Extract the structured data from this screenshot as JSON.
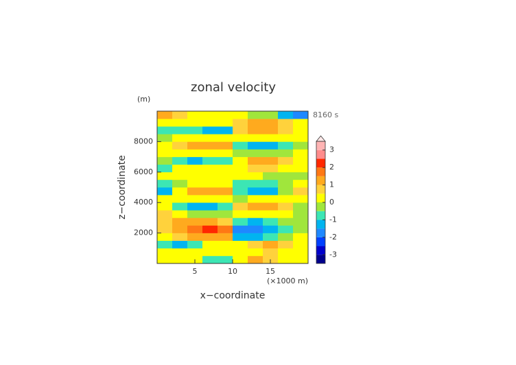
{
  "chart_data": {
    "type": "contourf",
    "title": "zonal velocity",
    "y_unit_label": "(m)",
    "time_label": "8160 s",
    "xlabel": "x−coordinate",
    "ylabel": "z−coordinate",
    "x_unit_label": "(×1000 m)",
    "xlim": [
      0,
      20
    ],
    "ylim": [
      0,
      10000
    ],
    "xticks": [
      5,
      10,
      15
    ],
    "yticks": [
      2000,
      4000,
      6000,
      8000
    ],
    "x": [
      1,
      3,
      5,
      7,
      9,
      11,
      13,
      15,
      17,
      19
    ],
    "y": [
      250,
      750,
      1250,
      1750,
      2250,
      2750,
      3250,
      3750,
      4250,
      4750,
      5250,
      5750,
      6250,
      6750,
      7250,
      7750,
      8250,
      8750,
      9250,
      9750
    ],
    "z": [
      [
        0.2,
        0.3,
        0.4,
        -0.6,
        -0.7,
        0.3,
        1.0,
        0.6,
        0.3,
        0.2
      ],
      [
        0.2,
        0.1,
        0.3,
        0.4,
        0.3,
        0.2,
        0.4,
        0.5,
        0.3,
        0.2
      ],
      [
        -0.8,
        -1.1,
        -0.6,
        0.2,
        0.3,
        0.4,
        0.9,
        1.1,
        0.8,
        0.3
      ],
      [
        0.4,
        0.9,
        1.1,
        1.2,
        1.0,
        -1.1,
        -1.2,
        -0.8,
        -0.3,
        0.1
      ],
      [
        0.8,
        1.3,
        1.6,
        2.1,
        1.6,
        -1.6,
        -1.9,
        -1.2,
        -0.6,
        -0.2
      ],
      [
        0.7,
        1.0,
        1.1,
        1.1,
        0.9,
        -0.9,
        -1.2,
        -0.6,
        -0.2,
        -0.5
      ],
      [
        0.5,
        0.2,
        -0.3,
        -0.4,
        -0.2,
        0.3,
        0.4,
        0.4,
        0.2,
        -0.4
      ],
      [
        0.3,
        -0.6,
        -1.2,
        -1.4,
        -1.0,
        0.9,
        1.2,
        1.1,
        0.5,
        -0.2
      ],
      [
        0.1,
        0.2,
        0.3,
        0.3,
        0.2,
        -0.1,
        0.1,
        0.2,
        0.3,
        0.2
      ],
      [
        -1.2,
        0.3,
        1.0,
        1.3,
        1.0,
        -1.0,
        -1.3,
        -1.2,
        -0.4,
        0.9
      ],
      [
        -1.0,
        -0.3,
        0.2,
        0.3,
        0.3,
        -0.6,
        -0.8,
        -0.8,
        -0.5,
        0.3
      ],
      [
        0.2,
        0.3,
        0.3,
        0.3,
        0.2,
        0.1,
        0.2,
        -0.2,
        -0.4,
        -0.1
      ],
      [
        -0.6,
        0.1,
        0.3,
        0.2,
        0.1,
        0.3,
        0.6,
        0.7,
        0.4,
        0.2
      ],
      [
        -0.4,
        -0.8,
        -1.3,
        -0.8,
        -0.6,
        0.3,
        1.0,
        1.1,
        0.8,
        0.3
      ],
      [
        0.2,
        0.4,
        0.4,
        0.3,
        0.1,
        -0.2,
        -0.4,
        -0.5,
        -0.3,
        0.0
      ],
      [
        0.3,
        0.8,
        1.2,
        1.3,
        1.0,
        -1.0,
        -1.4,
        -1.3,
        -0.8,
        -0.2
      ],
      [
        -0.2,
        0.1,
        0.3,
        0.2,
        0,
        0.2,
        0.3,
        0.2,
        0.1,
        0.2
      ],
      [
        -0.6,
        -0.8,
        -0.9,
        -1.2,
        -1.5,
        0.8,
        1.2,
        1.1,
        0.8,
        0.3
      ],
      [
        0.4,
        0.3,
        0.2,
        0.3,
        0.2,
        0.7,
        1.1,
        1.1,
        0.7,
        0.3
      ],
      [
        1.2,
        0.6,
        0.3,
        0.2,
        0.1,
        0.1,
        -0.3,
        -0.5,
        -1.2,
        -1.6
      ]
    ],
    "colorbar": {
      "levels": [
        -3.5,
        -3,
        -2.5,
        -2,
        -1.5,
        -1,
        -0.5,
        0,
        0.5,
        1,
        1.5,
        2,
        2.5,
        3,
        3.5
      ],
      "colors": [
        "#00008c",
        "#0000cc",
        "#0040ff",
        "#1e88ff",
        "#00b4f0",
        "#3ce6b4",
        "#a0e63c",
        "#ffff00",
        "#ffd23c",
        "#ffaa1e",
        "#ff7814",
        "#ff2800",
        "#ff8c8c",
        "#ffb4b4"
      ],
      "extend_color": "#ffe8e8",
      "ticks": [
        -3,
        -2,
        -1,
        0,
        1,
        2,
        3
      ]
    }
  }
}
